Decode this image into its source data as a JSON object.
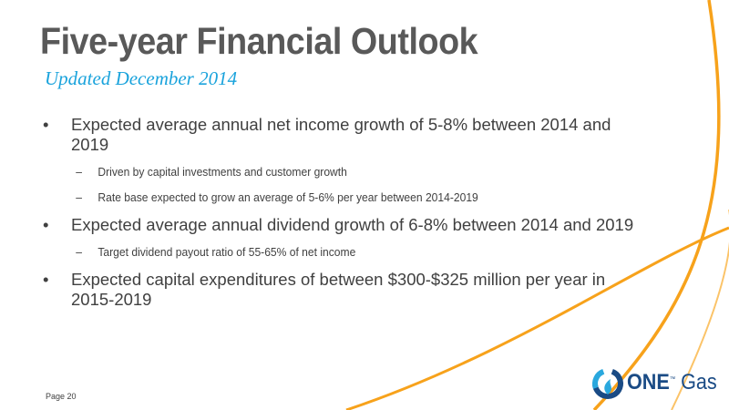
{
  "slide": {
    "title": "Five-year Financial Outlook",
    "subtitle": "Updated December 2014",
    "page": "Page 20"
  },
  "bullets": [
    {
      "text": "Expected average annual net income growth of 5-8% between 2014 and 2019",
      "sub": [
        "Driven by capital investments and customer growth",
        "Rate base expected to grow an average of 5-6% per year between 2014-2019"
      ]
    },
    {
      "text": "Expected average annual dividend growth of 6-8% between 2014 and 2019",
      "sub": [
        "Target dividend payout ratio of 55-65% of net income"
      ]
    },
    {
      "text": "Expected capital expenditures of between $300-$325 million per year in 2015-2019",
      "sub": []
    }
  ],
  "markers": {
    "bullet": "•",
    "dash": "–"
  },
  "logo": {
    "word1": "ONE",
    "word2": "Gas",
    "trademark": "™"
  },
  "colors": {
    "title": "#595959",
    "subtitle": "#1aa3dc",
    "body": "#404040",
    "swoosh": "#f7a21b",
    "logo_blue": "#1a4b85",
    "logo_light": "#2aa8de"
  }
}
